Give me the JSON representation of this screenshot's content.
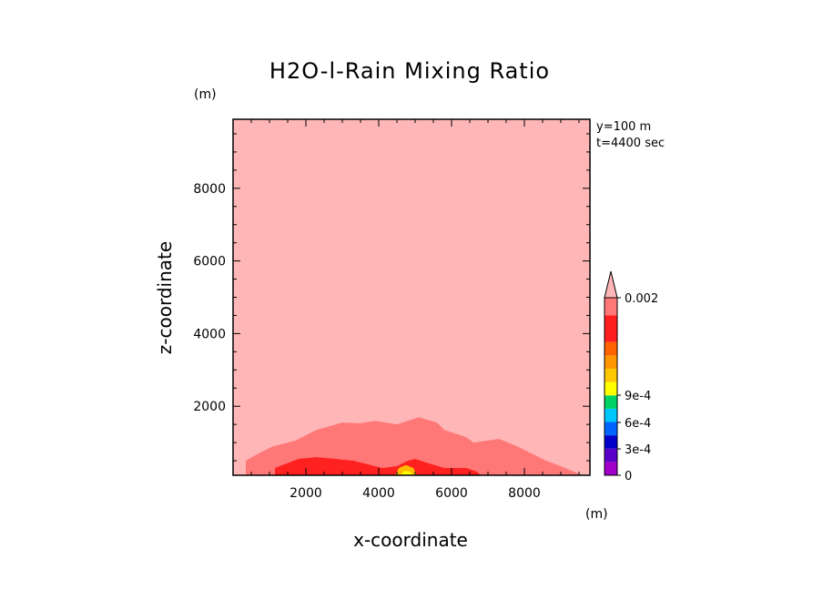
{
  "chart_data": {
    "type": "heatmap",
    "title": "H2O-l-Rain Mixing Ratio",
    "xlabel": "x-coordinate",
    "ylabel": "z-coordinate",
    "x_unit": "(m)",
    "y_unit": "(m)",
    "info_lines": [
      "y=100 m",
      "t=4400 sec"
    ],
    "xlim": [
      0,
      9800
    ],
    "ylim": [
      100,
      9900
    ],
    "x_ticks": [
      2000,
      4000,
      6000,
      8000
    ],
    "y_ticks": [
      2000,
      4000,
      6000,
      8000
    ],
    "background_level_color": "#ffb6b6",
    "levels": [
      {
        "label": "0.0006-0.002 contour",
        "color": "#ff7878",
        "points": [
          [
            350,
            100
          ],
          [
            350,
            500
          ],
          [
            600,
            650
          ],
          [
            1100,
            900
          ],
          [
            1700,
            1050
          ],
          [
            2300,
            1350
          ],
          [
            3000,
            1550
          ],
          [
            3500,
            1530
          ],
          [
            3900,
            1600
          ],
          [
            4500,
            1500
          ],
          [
            5100,
            1700
          ],
          [
            5600,
            1550
          ],
          [
            5800,
            1350
          ],
          [
            6400,
            1150
          ],
          [
            6600,
            1000
          ],
          [
            7300,
            1100
          ],
          [
            7800,
            900
          ],
          [
            8200,
            700
          ],
          [
            8600,
            500
          ],
          [
            9000,
            350
          ],
          [
            9600,
            100
          ]
        ]
      },
      {
        "label": "9e-4-0.0014 contour",
        "color": "#ff2020",
        "points": [
          [
            1150,
            100
          ],
          [
            1150,
            300
          ],
          [
            1800,
            550
          ],
          [
            2300,
            600
          ],
          [
            2800,
            550
          ],
          [
            3300,
            500
          ],
          [
            3700,
            400
          ],
          [
            4100,
            300
          ],
          [
            4500,
            350
          ],
          [
            4800,
            500
          ],
          [
            5000,
            550
          ],
          [
            5300,
            450
          ],
          [
            5800,
            300
          ],
          [
            6400,
            300
          ],
          [
            6700,
            200
          ],
          [
            6800,
            100
          ]
        ]
      },
      {
        "label": "4e-4 contour",
        "color": "#ffbb00",
        "points": [
          [
            4450,
            100
          ],
          [
            4550,
            300
          ],
          [
            4750,
            380
          ],
          [
            4950,
            300
          ],
          [
            5050,
            100
          ]
        ]
      },
      {
        "label": "6e-4 contour",
        "color": "#ffff00",
        "points": [
          [
            4600,
            100
          ],
          [
            4700,
            220
          ],
          [
            4850,
            200
          ],
          [
            4950,
            100
          ]
        ]
      }
    ],
    "colorbar": {
      "tick_labels": [
        "0",
        "3e-4",
        "6e-4",
        "9e-4",
        "0.002"
      ],
      "bands": [
        {
          "from": 0,
          "to": 0.00015,
          "color": "#a000c8"
        },
        {
          "from": 0.00015,
          "to": 0.0003,
          "color": "#5a00c8"
        },
        {
          "from": 0.0003,
          "to": 0.00045,
          "color": "#0000c8"
        },
        {
          "from": 0.00045,
          "to": 0.0006,
          "color": "#0064ff"
        },
        {
          "from": 0.0006,
          "to": 0.00075,
          "color": "#00c8ff"
        },
        {
          "from": 0.00075,
          "to": 0.0009,
          "color": "#00d264"
        },
        {
          "from": 0.0009,
          "to": 0.00105,
          "color": "#ffff00"
        },
        {
          "from": 0.00105,
          "to": 0.0012,
          "color": "#ffc800"
        },
        {
          "from": 0.0012,
          "to": 0.00135,
          "color": "#ff9600"
        },
        {
          "from": 0.00135,
          "to": 0.0015,
          "color": "#ff6400"
        },
        {
          "from": 0.0015,
          "to": 0.0018,
          "color": "#ff1e1e"
        },
        {
          "from": 0.0018,
          "to": 0.002,
          "color": "#ff7878"
        },
        {
          "from": 0.002,
          "to": 0.0022,
          "color": "#ffb6b6"
        }
      ]
    }
  }
}
